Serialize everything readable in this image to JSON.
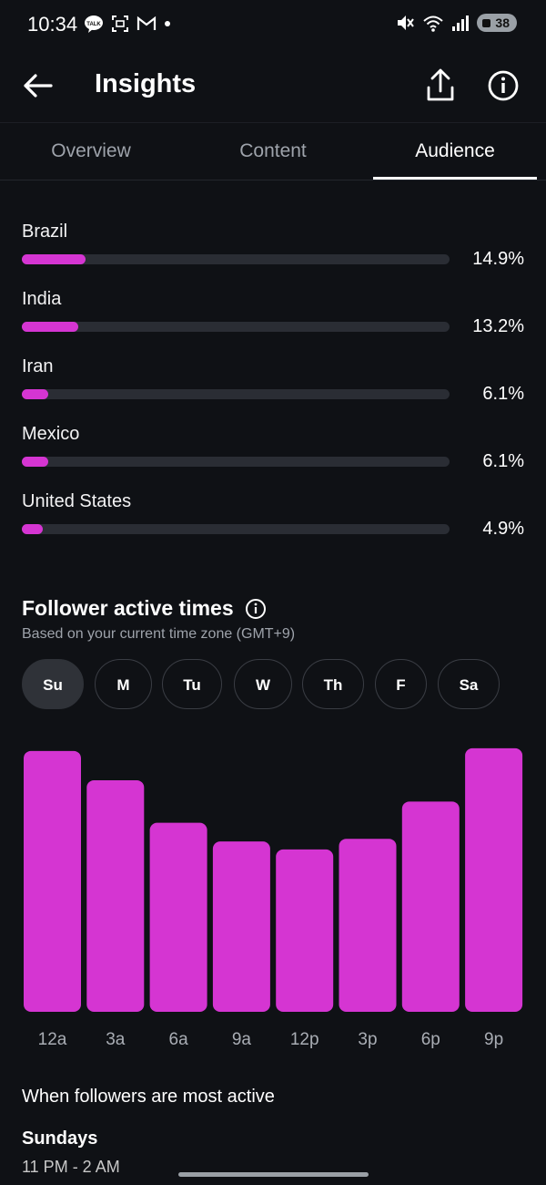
{
  "status_bar": {
    "time": "10:34",
    "left_icons": [
      "kakaotalk-icon",
      "screenshot-icon",
      "gmail-icon",
      "dot-icon"
    ],
    "right_icons": [
      "mute-icon",
      "wifi-icon",
      "signal-icon"
    ],
    "battery": "38"
  },
  "header": {
    "title": "Insights",
    "icons": [
      "back-arrow-icon",
      "share-icon",
      "info-icon"
    ]
  },
  "tabs": [
    {
      "label": "Overview",
      "active": false
    },
    {
      "label": "Content",
      "active": false
    },
    {
      "label": "Audience",
      "active": true
    }
  ],
  "countries": [
    {
      "name": "Brazil",
      "percent_label": "14.9%",
      "value": 14.9
    },
    {
      "name": "India",
      "percent_label": "13.2%",
      "value": 13.2
    },
    {
      "name": "Iran",
      "percent_label": "6.1%",
      "value": 6.1
    },
    {
      "name": "Mexico",
      "percent_label": "6.1%",
      "value": 6.1
    },
    {
      "name": "United States",
      "percent_label": "4.9%",
      "value": 4.9
    }
  ],
  "active_times": {
    "title": "Follower active times",
    "subtitle": "Based on your current time zone (GMT+9)",
    "days": [
      {
        "label": "Su",
        "active": true
      },
      {
        "label": "M",
        "active": false
      },
      {
        "label": "Tu",
        "active": false
      },
      {
        "label": "W",
        "active": false
      },
      {
        "label": "Th",
        "active": false
      },
      {
        "label": "F",
        "active": false
      },
      {
        "label": "Sa",
        "active": false
      }
    ]
  },
  "chart_data": {
    "type": "bar",
    "categories": [
      "12a",
      "3a",
      "6a",
      "9a",
      "12p",
      "3p",
      "6p",
      "9p"
    ],
    "values": [
      98,
      87,
      71,
      64,
      61,
      65,
      79,
      99
    ],
    "ylim": [
      0,
      100
    ],
    "grid": false,
    "bar_color": "#d535d2"
  },
  "most_active": {
    "title": "When followers are most active",
    "day": "Sundays",
    "time": "11 PM - 2 AM"
  },
  "colors": {
    "background": "#0f1115",
    "accent": "#d535d2",
    "track": "#2a2d34"
  }
}
